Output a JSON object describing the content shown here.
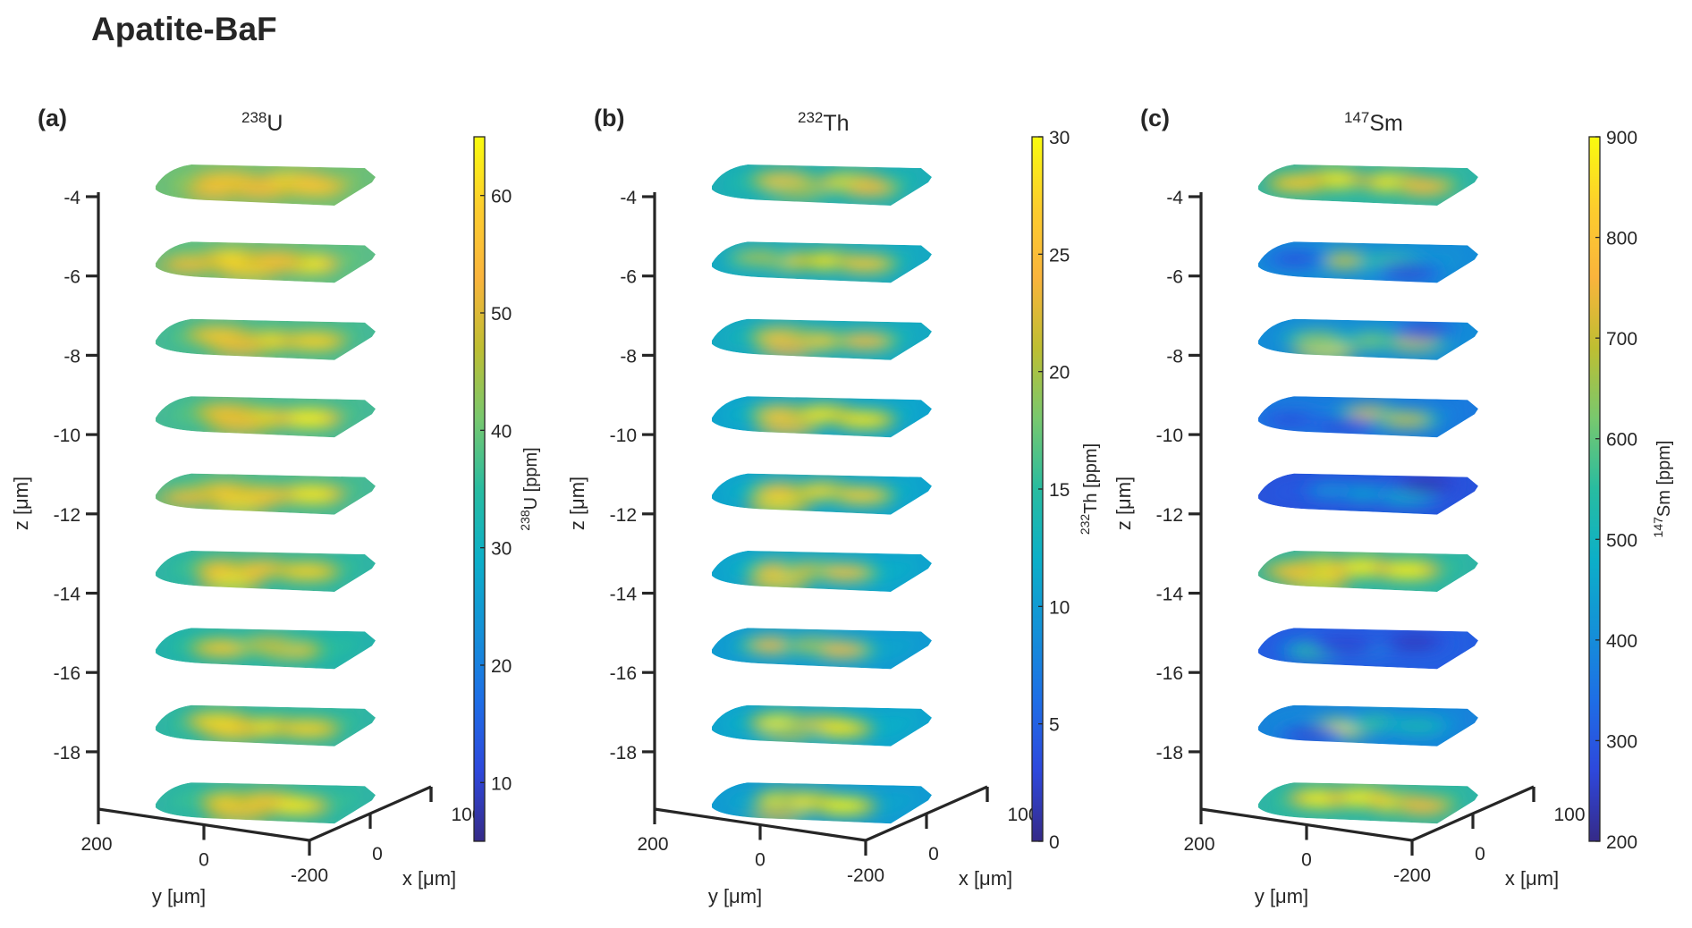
{
  "figure": {
    "title": "Apatite-BaF"
  },
  "chart_data": [
    {
      "type": "heatmap",
      "panel_label": "(a)",
      "title": {
        "sup": "238",
        "base": "U"
      },
      "colorbar": {
        "label_sup": "238",
        "label_base": "U [ppm]",
        "range": [
          5,
          65
        ],
        "ticks": [
          10,
          20,
          30,
          40,
          50,
          60
        ],
        "tick_labels": [
          "10",
          "20",
          "30",
          "40",
          "50",
          "60"
        ]
      },
      "zlabel": "z [μm]",
      "ylabel": "y [μm]",
      "xlabel": "x [μm]",
      "zticks": [
        -4,
        -6,
        -8,
        -10,
        -12,
        -14,
        -16,
        -18
      ],
      "ztick_labels": [
        "-4",
        "-6",
        "-8",
        "-10",
        "-12",
        "-14",
        "-16",
        "-18"
      ],
      "yticks": [
        200,
        0,
        -200
      ],
      "ytick_labels": [
        "200",
        "0",
        "-200"
      ],
      "xticks": [
        0,
        100
      ],
      "xtick_labels": [
        "0",
        "100"
      ],
      "colormap": "parula",
      "slices": [
        {
          "base": 42,
          "blobs": [
            [
              0.3,
              0.35,
              58
            ],
            [
              0.7,
              0.35,
              63
            ],
            [
              0.3,
              0.75,
              56
            ],
            [
              0.85,
              0.55,
              58
            ],
            [
              0.55,
              0.7,
              55
            ]
          ]
        },
        {
          "base": 40,
          "blobs": [
            [
              0.35,
              0.35,
              62
            ],
            [
              0.8,
              0.55,
              65
            ],
            [
              0.5,
              0.8,
              60
            ],
            [
              0.1,
              0.6,
              55
            ],
            [
              0.6,
              0.4,
              55
            ]
          ]
        },
        {
          "base": 38,
          "blobs": [
            [
              0.25,
              0.35,
              58
            ],
            [
              0.6,
              0.55,
              62
            ],
            [
              0.85,
              0.55,
              60
            ],
            [
              0.45,
              0.8,
              55
            ]
          ]
        },
        {
          "base": 38,
          "blobs": [
            [
              0.3,
              0.35,
              56
            ],
            [
              0.55,
              0.55,
              62
            ],
            [
              0.82,
              0.55,
              65
            ],
            [
              0.45,
              0.8,
              56
            ]
          ]
        },
        {
          "base": 38,
          "blobs": [
            [
              0.3,
              0.4,
              58
            ],
            [
              0.55,
              0.55,
              58
            ],
            [
              0.83,
              0.5,
              64
            ],
            [
              0.45,
              0.85,
              62
            ],
            [
              0.1,
              0.65,
              55
            ]
          ]
        },
        {
          "base": 36,
          "blobs": [
            [
              0.3,
              0.4,
              56
            ],
            [
              0.52,
              0.4,
              56
            ],
            [
              0.8,
              0.5,
              60
            ],
            [
              0.4,
              0.85,
              64
            ]
          ]
        },
        {
          "base": 35,
          "blobs": [
            [
              0.3,
              0.5,
              58
            ],
            [
              0.7,
              0.55,
              58
            ],
            [
              0.55,
              0.35,
              48
            ]
          ]
        },
        {
          "base": 36,
          "blobs": [
            [
              0.25,
              0.35,
              62
            ],
            [
              0.4,
              0.7,
              60
            ],
            [
              0.6,
              0.55,
              62
            ],
            [
              0.82,
              0.6,
              60
            ]
          ]
        },
        {
          "base": 36,
          "blobs": [
            [
              0.35,
              0.45,
              60
            ],
            [
              0.55,
              0.4,
              58
            ],
            [
              0.75,
              0.6,
              64
            ],
            [
              0.45,
              0.85,
              58
            ]
          ]
        }
      ]
    },
    {
      "type": "heatmap",
      "panel_label": "(b)",
      "title": {
        "sup": "232",
        "base": "Th"
      },
      "colorbar": {
        "label_sup": "232",
        "label_base": "Th [ppm]",
        "range": [
          0,
          30
        ],
        "ticks": [
          0,
          5,
          10,
          15,
          20,
          25,
          30
        ],
        "tick_labels": [
          "0",
          "5",
          "10",
          "15",
          "20",
          "25",
          "30"
        ]
      },
      "zlabel": "z [μm]",
      "ylabel": "y [μm]",
      "xlabel": "x [μm]",
      "zticks": [
        -4,
        -6,
        -8,
        -10,
        -12,
        -14,
        -16,
        -18
      ],
      "ztick_labels": [
        "-4",
        "-6",
        "-8",
        "-10",
        "-12",
        "-14",
        "-16",
        "-18"
      ],
      "yticks": [
        200,
        0,
        -200
      ],
      "ytick_labels": [
        "200",
        "0",
        "-200"
      ],
      "xticks": [
        0,
        100
      ],
      "xtick_labels": [
        "0",
        "100"
      ],
      "colormap": "parula",
      "slices": [
        {
          "base": 14,
          "blobs": [
            [
              0.3,
              0.35,
              26
            ],
            [
              0.72,
              0.4,
              30
            ],
            [
              0.85,
              0.6,
              24
            ],
            [
              0.45,
              0.75,
              20
            ]
          ]
        },
        {
          "base": 13,
          "blobs": [
            [
              0.35,
              0.45,
              28
            ],
            [
              0.6,
              0.45,
              29
            ],
            [
              0.82,
              0.55,
              26
            ],
            [
              0.15,
              0.35,
              20
            ]
          ]
        },
        {
          "base": 13,
          "blobs": [
            [
              0.3,
              0.4,
              26
            ],
            [
              0.55,
              0.55,
              27
            ],
            [
              0.82,
              0.55,
              24
            ],
            [
              0.4,
              0.8,
              24
            ]
          ]
        },
        {
          "base": 12,
          "blobs": [
            [
              0.3,
              0.4,
              26
            ],
            [
              0.55,
              0.4,
              29
            ],
            [
              0.82,
              0.6,
              29
            ],
            [
              0.4,
              0.85,
              26
            ]
          ]
        },
        {
          "base": 12,
          "blobs": [
            [
              0.3,
              0.4,
              25
            ],
            [
              0.55,
              0.4,
              28
            ],
            [
              0.8,
              0.55,
              27
            ],
            [
              0.35,
              0.85,
              29
            ]
          ]
        },
        {
          "base": 12,
          "blobs": [
            [
              0.3,
              0.45,
              24
            ],
            [
              0.5,
              0.45,
              22
            ],
            [
              0.7,
              0.55,
              25
            ],
            [
              0.35,
              0.85,
              28
            ]
          ]
        },
        {
          "base": 11,
          "blobs": [
            [
              0.25,
              0.4,
              24
            ],
            [
              0.5,
              0.4,
              21
            ],
            [
              0.68,
              0.55,
              24
            ]
          ]
        },
        {
          "base": 12,
          "blobs": [
            [
              0.3,
              0.4,
              30
            ],
            [
              0.55,
              0.45,
              27
            ],
            [
              0.68,
              0.6,
              29
            ],
            [
              0.4,
              0.8,
              20
            ]
          ]
        },
        {
          "base": 11,
          "blobs": [
            [
              0.33,
              0.4,
              30
            ],
            [
              0.48,
              0.45,
              29
            ],
            [
              0.7,
              0.6,
              30
            ],
            [
              0.35,
              0.9,
              22
            ]
          ]
        }
      ]
    },
    {
      "type": "heatmap",
      "panel_label": "(c)",
      "title": {
        "sup": "147",
        "base": "Sm"
      },
      "colorbar": {
        "label_sup": "147",
        "label_base": "Sm [ppm]",
        "range": [
          200,
          900
        ],
        "ticks": [
          200,
          300,
          400,
          500,
          600,
          700,
          800,
          900
        ],
        "tick_labels": [
          "200",
          "300",
          "400",
          "500",
          "600",
          "700",
          "800",
          "900"
        ]
      },
      "zlabel": "z [μm]",
      "ylabel": "y [μm]",
      "xlabel": "x [μm]",
      "zticks": [
        -4,
        -6,
        -8,
        -10,
        -12,
        -14,
        -16,
        -18
      ],
      "ztick_labels": [
        "-4",
        "-6",
        "-8",
        "-10",
        "-12",
        "-14",
        "-16",
        "-18"
      ],
      "yticks": [
        200,
        0,
        -200
      ],
      "ytick_labels": [
        "200",
        "0",
        "-200"
      ],
      "xticks": [
        0,
        100
      ],
      "xtick_labels": [
        "0",
        "100"
      ],
      "colormap": "parula",
      "slices": [
        {
          "base": 560,
          "blobs": [
            [
              0.3,
              0.3,
              900
            ],
            [
              0.7,
              0.4,
              900
            ],
            [
              0.12,
              0.45,
              820
            ],
            [
              0.9,
              0.55,
              760
            ]
          ]
        },
        {
          "base": 420,
          "blobs": [
            [
              0.4,
              0.45,
              700
            ],
            [
              0.7,
              0.5,
              580
            ],
            [
              0.1,
              0.4,
              280
            ],
            [
              0.85,
              0.8,
              260
            ]
          ]
        },
        {
          "base": 420,
          "blobs": [
            [
              0.35,
              0.85,
              900
            ],
            [
              0.25,
              0.5,
              640
            ],
            [
              0.6,
              0.55,
              620
            ],
            [
              0.85,
              0.6,
              700
            ],
            [
              0.85,
              0.2,
              260
            ]
          ]
        },
        {
          "base": 380,
          "blobs": [
            [
              0.55,
              0.4,
              720
            ],
            [
              0.8,
              0.6,
              700
            ],
            [
              0.1,
              0.6,
              280
            ],
            [
              0.45,
              0.8,
              270
            ]
          ]
        },
        {
          "base": 300,
          "blobs": [
            [
              0.35,
              0.4,
              420
            ],
            [
              0.55,
              0.5,
              450
            ],
            [
              0.8,
              0.6,
              480
            ],
            [
              0.85,
              0.2,
              230
            ]
          ]
        },
        {
          "base": 560,
          "blobs": [
            [
              0.25,
              0.35,
              900
            ],
            [
              0.5,
              0.35,
              900
            ],
            [
              0.78,
              0.45,
              900
            ],
            [
              0.3,
              0.85,
              880
            ],
            [
              0.1,
              0.5,
              800
            ]
          ]
        },
        {
          "base": 320,
          "blobs": [
            [
              0.25,
              0.6,
              560
            ],
            [
              0.5,
              0.5,
              420
            ],
            [
              0.8,
              0.3,
              240
            ],
            [
              0.4,
              0.4,
              260
            ]
          ]
        },
        {
          "base": 400,
          "blobs": [
            [
              0.4,
              0.6,
              880
            ],
            [
              0.6,
              0.4,
              560
            ],
            [
              0.25,
              0.8,
              260
            ],
            [
              0.85,
              0.5,
              520
            ]
          ]
        },
        {
          "base": 560,
          "blobs": [
            [
              0.25,
              0.35,
              900
            ],
            [
              0.48,
              0.3,
              900
            ],
            [
              0.75,
              0.5,
              900
            ],
            [
              0.9,
              0.6,
              760
            ]
          ]
        }
      ]
    }
  ]
}
